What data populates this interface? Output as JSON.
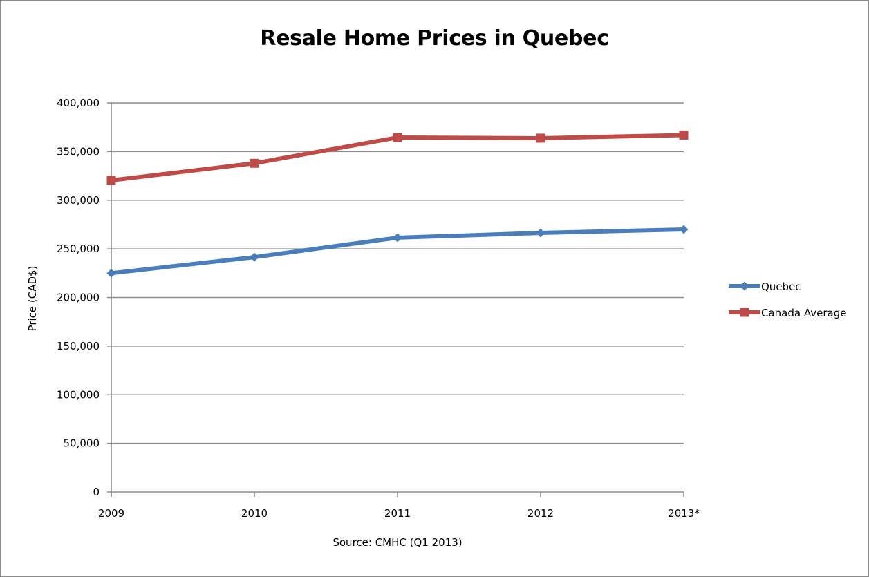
{
  "chart_data": {
    "type": "line",
    "title": "Resale Home Prices in Quebec",
    "xlabel": "Source: CMHC (Q1 2013)",
    "ylabel": "Price (CAD$)",
    "categories": [
      "2009",
      "2010",
      "2011",
      "2012",
      "2013*"
    ],
    "ylim": [
      0,
      400000
    ],
    "yticks": [
      0,
      50000,
      100000,
      150000,
      200000,
      250000,
      300000,
      350000,
      400000
    ],
    "ytick_labels": [
      "0",
      "50,000",
      "100,000",
      "150,000",
      "200,000",
      "250,000",
      "300,000",
      "350,000",
      "400,000"
    ],
    "grid": true,
    "legend_position": "right",
    "series": [
      {
        "name": "Quebec",
        "color": "#4a7ebb",
        "marker": "diamond",
        "values": [
          225000,
          241500,
          261500,
          266400,
          270000
        ]
      },
      {
        "name": "Canada Average",
        "color": "#be4b48",
        "marker": "square",
        "values": [
          320400,
          338000,
          364500,
          363800,
          367000
        ]
      }
    ]
  }
}
